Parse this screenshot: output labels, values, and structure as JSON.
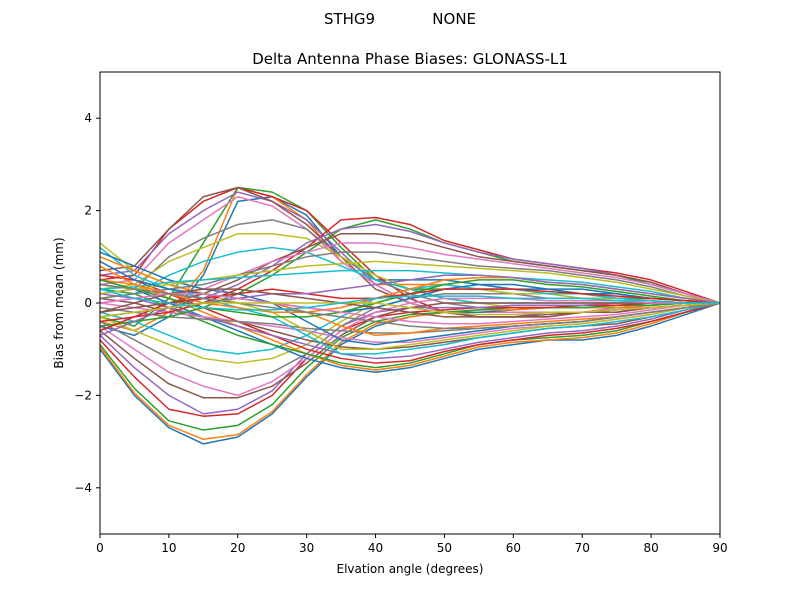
{
  "chart_data": {
    "type": "line",
    "suptitle": "STHG9            NONE",
    "title": "Delta Antenna Phase Biases: GLONASS-L1",
    "xlabel": "Elvation angle (degrees)",
    "ylabel": "Bias from mean (mm)",
    "xlim": [
      0,
      90
    ],
    "ylim": [
      -5,
      5
    ],
    "xticks": [
      0,
      10,
      20,
      30,
      40,
      50,
      60,
      70,
      80,
      90
    ],
    "yticks": [
      -4,
      -2,
      0,
      2,
      4
    ],
    "grid": false,
    "x": [
      0,
      5,
      10,
      15,
      20,
      25,
      30,
      35,
      40,
      45,
      50,
      55,
      60,
      65,
      70,
      75,
      80,
      85,
      90
    ],
    "colors": [
      "#1f77b4",
      "#ff7f0e",
      "#2ca02c",
      "#d62728",
      "#9467bd",
      "#8c564b",
      "#e377c2",
      "#7f7f7f",
      "#bcbd22",
      "#17becf"
    ],
    "series": [
      {
        "values": [
          -0.5,
          -0.7,
          -0.3,
          0.6,
          2.2,
          2.3,
          1.9,
          1.0,
          0.5,
          0.5,
          0.5,
          0.4,
          0.3,
          0.3,
          0.2,
          0.2,
          0.1,
          0.05,
          0
        ]
      },
      {
        "values": [
          -0.4,
          -0.6,
          -0.2,
          0.7,
          2.5,
          2.3,
          1.8,
          0.9,
          0.4,
          0.4,
          0.4,
          0.3,
          0.3,
          0.2,
          0.2,
          0.1,
          0.1,
          0.05,
          0
        ]
      },
      {
        "values": [
          -0.3,
          -0.5,
          0.1,
          1.3,
          2.5,
          2.4,
          2.0,
          1.2,
          0.5,
          0.3,
          0.3,
          0.3,
          0.2,
          0.2,
          0.2,
          0.1,
          0.1,
          0.05,
          0
        ]
      },
      {
        "values": [
          0.5,
          0.6,
          1.6,
          2.2,
          2.5,
          2.3,
          2.0,
          1.3,
          0.6,
          0.1,
          -0.2,
          -0.3,
          -0.3,
          -0.3,
          -0.2,
          -0.2,
          -0.1,
          -0.05,
          0
        ]
      },
      {
        "values": [
          0.6,
          0.7,
          1.5,
          2.0,
          2.4,
          2.2,
          1.8,
          1.1,
          0.4,
          0.0,
          -0.2,
          -0.3,
          -0.3,
          -0.2,
          -0.2,
          -0.2,
          -0.1,
          -0.05,
          0
        ]
      },
      {
        "values": [
          0.7,
          0.8,
          1.6,
          2.3,
          2.5,
          2.2,
          1.7,
          1.0,
          0.3,
          0.0,
          -0.2,
          -0.3,
          -0.3,
          -0.3,
          -0.2,
          -0.2,
          -0.1,
          -0.05,
          0
        ]
      },
      {
        "values": [
          0.4,
          0.5,
          1.3,
          1.8,
          2.3,
          2.1,
          1.6,
          0.9,
          0.4,
          0.0,
          -0.2,
          -0.2,
          -0.2,
          -0.2,
          -0.2,
          -0.1,
          -0.1,
          -0.05,
          0
        ]
      },
      {
        "values": [
          0.2,
          0.3,
          1.0,
          1.4,
          1.7,
          1.8,
          1.6,
          1.0,
          0.5,
          0.2,
          0.0,
          -0.1,
          -0.1,
          -0.1,
          -0.1,
          -0.1,
          -0.05,
          0.0,
          0
        ]
      },
      {
        "values": [
          0.3,
          0.4,
          0.9,
          1.2,
          1.5,
          1.5,
          1.4,
          1.0,
          0.6,
          0.3,
          0.1,
          0.0,
          -0.1,
          -0.1,
          -0.1,
          -0.1,
          -0.05,
          0.0,
          0
        ]
      },
      {
        "values": [
          0.1,
          0.2,
          0.6,
          0.9,
          1.1,
          1.2,
          1.1,
          0.8,
          0.5,
          0.3,
          0.1,
          0.0,
          0.0,
          0.0,
          0.0,
          0.0,
          0.0,
          0.0,
          0
        ]
      },
      {
        "values": [
          -1.0,
          -2.0,
          -2.7,
          -3.05,
          -2.9,
          -2.4,
          -1.6,
          -0.9,
          -0.5,
          -0.3,
          -0.2,
          -0.2,
          -0.15,
          -0.1,
          -0.1,
          -0.1,
          -0.05,
          0.0,
          0
        ]
      },
      {
        "values": [
          -0.95,
          -1.95,
          -2.65,
          -2.95,
          -2.85,
          -2.35,
          -1.55,
          -0.85,
          -0.45,
          -0.3,
          -0.2,
          -0.15,
          -0.15,
          -0.1,
          -0.1,
          -0.1,
          -0.05,
          0.0,
          0
        ]
      },
      {
        "values": [
          -0.9,
          -1.85,
          -2.55,
          -2.75,
          -2.65,
          -2.2,
          -1.4,
          -0.75,
          -0.4,
          -0.25,
          -0.2,
          -0.15,
          -0.1,
          -0.1,
          -0.1,
          -0.05,
          -0.05,
          0.0,
          0
        ]
      },
      {
        "values": [
          -0.8,
          -1.6,
          -2.3,
          -2.45,
          -2.4,
          -2.0,
          -1.2,
          -0.6,
          -0.3,
          -0.2,
          -0.15,
          -0.1,
          -0.1,
          -0.1,
          -0.05,
          -0.05,
          0.0,
          0.0,
          0
        ]
      },
      {
        "values": [
          -0.7,
          -1.4,
          -2.0,
          -2.4,
          -2.3,
          -1.9,
          -1.1,
          -0.5,
          -0.2,
          -0.1,
          -0.1,
          -0.1,
          -0.05,
          -0.05,
          -0.05,
          0.0,
          0.0,
          0.0,
          0
        ]
      },
      {
        "values": [
          -0.6,
          -1.2,
          -1.75,
          -2.05,
          -2.05,
          -1.8,
          -1.3,
          -0.7,
          -0.3,
          -0.1,
          0.0,
          0.0,
          0.0,
          0.0,
          0.0,
          0.0,
          0.0,
          0.0,
          0
        ]
      },
      {
        "values": [
          -0.5,
          -1.0,
          -1.5,
          -1.8,
          -2.0,
          -1.7,
          -1.2,
          -0.6,
          -0.2,
          0.0,
          0.1,
          0.1,
          0.1,
          0.05,
          0.05,
          0.05,
          0.0,
          0.0,
          0
        ]
      },
      {
        "values": [
          -0.4,
          -0.8,
          -1.2,
          -1.5,
          -1.65,
          -1.5,
          -1.1,
          -0.5,
          -0.1,
          0.1,
          0.2,
          0.2,
          0.2,
          0.1,
          0.1,
          0.1,
          0.05,
          0.0,
          0
        ]
      },
      {
        "values": [
          -0.3,
          -0.6,
          -0.9,
          -1.2,
          -1.3,
          -1.2,
          -0.9,
          -0.4,
          0.0,
          0.2,
          0.3,
          0.3,
          0.2,
          0.2,
          0.1,
          0.1,
          0.05,
          0.0,
          0
        ]
      },
      {
        "values": [
          -0.2,
          -0.4,
          -0.7,
          -1.0,
          -1.1,
          -1.0,
          -0.7,
          -0.3,
          0.1,
          0.3,
          0.4,
          0.3,
          0.3,
          0.2,
          0.2,
          0.1,
          0.05,
          0.0,
          0
        ]
      },
      {
        "values": [
          0.4,
          0.3,
          0.0,
          -0.3,
          -0.6,
          -0.9,
          -1.2,
          -1.4,
          -1.5,
          -1.4,
          -1.2,
          -1.0,
          -0.9,
          -0.8,
          -0.8,
          -0.7,
          -0.5,
          -0.25,
          0
        ]
      },
      {
        "values": [
          0.5,
          0.4,
          0.1,
          -0.2,
          -0.5,
          -0.8,
          -1.1,
          -1.35,
          -1.45,
          -1.35,
          -1.15,
          -0.95,
          -0.85,
          -0.8,
          -0.75,
          -0.65,
          -0.45,
          -0.2,
          0
        ]
      },
      {
        "values": [
          0.3,
          0.2,
          -0.1,
          -0.4,
          -0.7,
          -0.9,
          -1.1,
          -1.3,
          -1.4,
          -1.3,
          -1.1,
          -0.9,
          -0.8,
          -0.75,
          -0.7,
          -0.6,
          -0.4,
          -0.2,
          0
        ]
      },
      {
        "values": [
          0.6,
          0.5,
          0.2,
          -0.1,
          -0.4,
          -0.7,
          -1.0,
          -1.2,
          -1.3,
          -1.25,
          -1.05,
          -0.9,
          -0.8,
          -0.7,
          -0.65,
          -0.55,
          -0.4,
          -0.2,
          0
        ]
      },
      {
        "values": [
          0.2,
          0.1,
          -0.1,
          -0.3,
          -0.5,
          -0.7,
          -0.9,
          -1.1,
          -1.2,
          -1.15,
          -1.0,
          -0.85,
          -0.75,
          -0.65,
          -0.6,
          -0.5,
          -0.35,
          -0.15,
          0
        ]
      },
      {
        "values": [
          0.1,
          0.0,
          -0.2,
          -0.3,
          -0.4,
          -0.6,
          -0.8,
          -0.95,
          -1.0,
          -0.95,
          -0.85,
          -0.75,
          -0.65,
          -0.55,
          -0.5,
          -0.45,
          -0.3,
          -0.15,
          0
        ]
      },
      {
        "values": [
          0.0,
          -0.1,
          -0.2,
          -0.3,
          -0.4,
          -0.5,
          -0.6,
          -0.75,
          -0.85,
          -0.85,
          -0.75,
          -0.65,
          -0.55,
          -0.5,
          -0.45,
          -0.35,
          -0.25,
          -0.1,
          0
        ]
      },
      {
        "values": [
          -0.1,
          -0.2,
          -0.3,
          -0.35,
          -0.4,
          -0.45,
          -0.55,
          -0.6,
          -0.65,
          -0.65,
          -0.6,
          -0.55,
          -0.5,
          -0.45,
          -0.4,
          -0.3,
          -0.2,
          -0.1,
          0
        ]
      },
      {
        "values": [
          1.3,
          0.7,
          0.4,
          0.2,
          0.0,
          -0.2,
          -0.6,
          -1.0,
          -1.0,
          -0.9,
          -0.8,
          -0.7,
          -0.6,
          -0.5,
          -0.45,
          -0.35,
          -0.25,
          -0.1,
          0
        ]
      },
      {
        "values": [
          1.2,
          0.6,
          0.3,
          0.1,
          -0.1,
          -0.3,
          -0.7,
          -1.1,
          -1.1,
          -1.0,
          -0.9,
          -0.75,
          -0.65,
          -0.55,
          -0.5,
          -0.4,
          -0.3,
          -0.15,
          0
        ]
      },
      {
        "values": [
          1.1,
          0.8,
          0.5,
          0.3,
          0.2,
          0.0,
          -0.4,
          -0.8,
          -0.9,
          -0.8,
          -0.7,
          -0.6,
          -0.5,
          -0.45,
          -0.4,
          -0.3,
          -0.2,
          -0.1,
          0
        ]
      },
      {
        "values": [
          1.0,
          0.7,
          0.4,
          0.2,
          0.1,
          0.0,
          -0.2,
          -0.5,
          -0.7,
          -0.65,
          -0.55,
          -0.5,
          -0.45,
          -0.4,
          -0.35,
          -0.3,
          -0.2,
          -0.1,
          0
        ]
      },
      {
        "values": [
          -0.5,
          -0.4,
          -0.3,
          -0.1,
          0.2,
          0.6,
          1.1,
          1.6,
          1.8,
          1.6,
          1.3,
          1.1,
          0.9,
          0.8,
          0.7,
          0.6,
          0.4,
          0.2,
          0
        ]
      },
      {
        "values": [
          -0.4,
          -0.3,
          -0.2,
          0.0,
          0.3,
          0.7,
          1.2,
          1.8,
          1.85,
          1.7,
          1.35,
          1.15,
          0.95,
          0.85,
          0.75,
          0.65,
          0.5,
          0.25,
          0
        ]
      },
      {
        "values": [
          -0.3,
          -0.2,
          -0.1,
          0.1,
          0.4,
          0.8,
          1.3,
          1.6,
          1.7,
          1.55,
          1.3,
          1.1,
          0.95,
          0.85,
          0.75,
          0.6,
          0.45,
          0.2,
          0
        ]
      },
      {
        "values": [
          -0.2,
          -0.1,
          0.0,
          0.2,
          0.5,
          0.9,
          1.2,
          1.5,
          1.5,
          1.4,
          1.2,
          1.0,
          0.9,
          0.8,
          0.7,
          0.6,
          0.45,
          0.2,
          0
        ]
      },
      {
        "values": [
          0.0,
          0.1,
          0.2,
          0.3,
          0.6,
          0.9,
          1.1,
          1.3,
          1.3,
          1.2,
          1.05,
          0.95,
          0.85,
          0.75,
          0.65,
          0.55,
          0.4,
          0.2,
          0
        ]
      },
      {
        "values": [
          0.1,
          0.2,
          0.3,
          0.4,
          0.6,
          0.8,
          1.0,
          1.1,
          1.1,
          1.0,
          0.9,
          0.8,
          0.75,
          0.7,
          0.6,
          0.5,
          0.35,
          0.15,
          0
        ]
      },
      {
        "values": [
          0.2,
          0.3,
          0.4,
          0.5,
          0.6,
          0.7,
          0.8,
          0.85,
          0.9,
          0.85,
          0.8,
          0.75,
          0.7,
          0.65,
          0.55,
          0.45,
          0.3,
          0.15,
          0
        ]
      },
      {
        "values": [
          0.3,
          0.35,
          0.45,
          0.5,
          0.55,
          0.6,
          0.65,
          0.7,
          0.7,
          0.7,
          0.65,
          0.6,
          0.55,
          0.5,
          0.45,
          0.35,
          0.25,
          0.1,
          0
        ]
      },
      {
        "values": [
          0.9,
          0.5,
          0.3,
          0.2,
          0.1,
          0.0,
          -0.1,
          -0.2,
          -0.1,
          0.1,
          0.3,
          0.4,
          0.4,
          0.3,
          0.3,
          0.2,
          0.1,
          0.05,
          0
        ]
      },
      {
        "values": [
          0.8,
          0.4,
          0.2,
          0.0,
          -0.1,
          -0.2,
          -0.2,
          -0.1,
          0.1,
          0.3,
          0.5,
          0.55,
          0.55,
          0.45,
          0.4,
          0.3,
          0.2,
          0.1,
          0
        ]
      },
      {
        "values": [
          0.5,
          0.3,
          0.1,
          -0.1,
          -0.2,
          -0.3,
          -0.3,
          -0.2,
          0.0,
          0.2,
          0.4,
          0.5,
          0.5,
          0.4,
          0.35,
          0.25,
          0.15,
          0.05,
          0
        ]
      },
      {
        "values": [
          -0.6,
          -0.3,
          0.0,
          0.1,
          0.2,
          0.3,
          0.2,
          0.1,
          0.1,
          0.2,
          0.3,
          0.3,
          0.3,
          0.25,
          0.2,
          0.15,
          0.1,
          0.05,
          0
        ]
      },
      {
        "values": [
          -0.7,
          -0.4,
          -0.1,
          0.0,
          0.1,
          0.2,
          0.2,
          0.3,
          0.4,
          0.5,
          0.6,
          0.6,
          0.55,
          0.45,
          0.4,
          0.3,
          0.2,
          0.1,
          0
        ]
      },
      {
        "values": [
          -0.2,
          0.0,
          0.2,
          0.3,
          0.3,
          0.2,
          0.1,
          0.0,
          -0.1,
          -0.2,
          -0.3,
          -0.3,
          -0.3,
          -0.25,
          -0.2,
          -0.15,
          -0.1,
          -0.05,
          0
        ]
      },
      {
        "values": [
          0.0,
          0.1,
          0.2,
          0.2,
          0.1,
          0.0,
          -0.1,
          -0.2,
          -0.3,
          -0.4,
          -0.45,
          -0.45,
          -0.4,
          -0.35,
          -0.3,
          -0.25,
          -0.15,
          -0.05,
          0
        ]
      },
      {
        "values": [
          0.4,
          0.3,
          0.2,
          0.1,
          0.0,
          -0.1,
          -0.2,
          -0.3,
          -0.4,
          -0.5,
          -0.55,
          -0.55,
          -0.5,
          -0.45,
          -0.4,
          -0.3,
          -0.2,
          -0.1,
          0
        ]
      },
      {
        "values": [
          -0.3,
          -0.2,
          -0.1,
          0.0,
          0.0,
          0.0,
          0.0,
          0.0,
          0.0,
          -0.1,
          -0.2,
          -0.25,
          -0.25,
          -0.2,
          -0.2,
          -0.15,
          -0.1,
          -0.05,
          0
        ]
      },
      {
        "values": [
          0.3,
          0.1,
          0.0,
          -0.1,
          -0.15,
          -0.15,
          -0.1,
          0.0,
          0.1,
          0.15,
          0.15,
          0.15,
          0.1,
          0.1,
          0.1,
          0.05,
          0.05,
          0.0,
          0
        ]
      }
    ]
  }
}
